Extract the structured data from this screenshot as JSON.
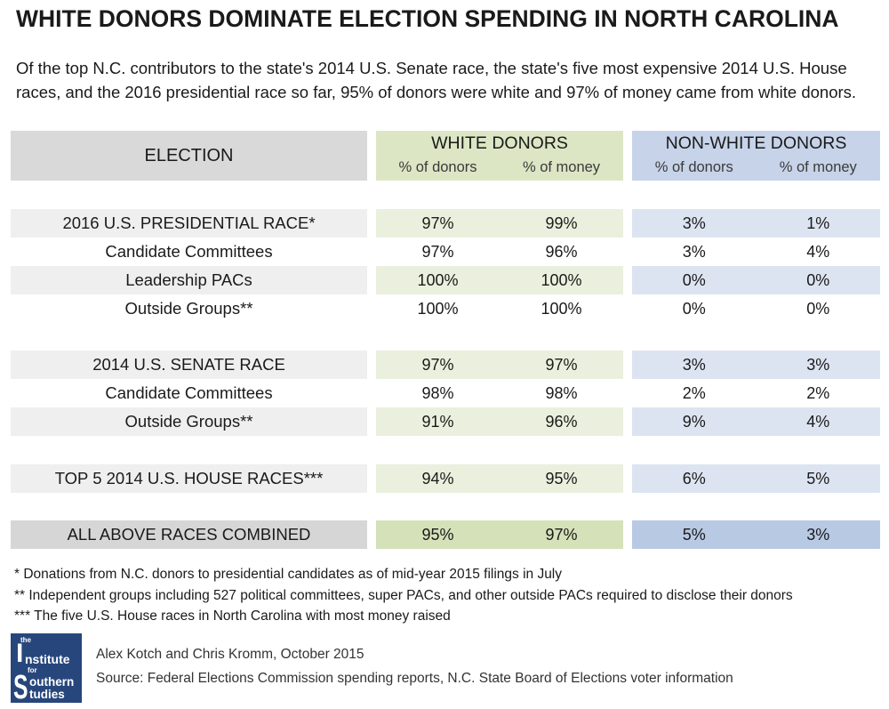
{
  "title": "WHITE DONORS DOMINATE ELECTION SPENDING IN NORTH CAROLINA",
  "subtitle": "Of the top N.C. contributors to the state's 2014 U.S. Senate race, the state's five most expensive 2014 U.S. House races, and the 2016 presidential race so far, 95% of donors were white and 97% of money came from white donors.",
  "colors": {
    "text": "#1a1a1a",
    "header_gray": "#d9d9d9",
    "header_green": "#dce6c4",
    "header_blue": "#c7d3e9",
    "row_gray": "#efefef",
    "row_green": "#eaf0dd",
    "row_blue": "#dde4f1",
    "total_gray": "#d6d6d6",
    "total_green": "#d5e1b8",
    "total_blue": "#b8c9e4",
    "logo_blue": "#27477c"
  },
  "chart_data": {
    "type": "table",
    "columns": {
      "label_header": "ELECTION",
      "groups": [
        {
          "label": "WHITE DONORS",
          "subcolumns": [
            "% of donors",
            "% of money"
          ]
        },
        {
          "label": "NON-WHITE DONORS",
          "subcolumns": [
            "% of donors",
            "% of money"
          ]
        }
      ]
    },
    "unit": "%",
    "sections": [
      {
        "race": {
          "label": "2016 U.S. PRESIDENTIAL RACE*",
          "values": [
            97,
            99,
            3,
            1
          ]
        },
        "breakdown": [
          {
            "label": "Candidate Committees",
            "values": [
              97,
              96,
              3,
              4
            ]
          },
          {
            "label": "Leadership PACs",
            "values": [
              100,
              100,
              0,
              0
            ]
          },
          {
            "label": "Outside Groups**",
            "values": [
              100,
              100,
              0,
              0
            ]
          }
        ]
      },
      {
        "race": {
          "label": "2014 U.S. SENATE RACE",
          "values": [
            97,
            97,
            3,
            3
          ]
        },
        "breakdown": [
          {
            "label": "Candidate Committees",
            "values": [
              98,
              98,
              2,
              2
            ]
          },
          {
            "label": "Outside Groups**",
            "values": [
              91,
              96,
              9,
              4
            ]
          }
        ]
      },
      {
        "race": {
          "label": "TOP 5 2014 U.S. HOUSE RACES***",
          "values": [
            94,
            95,
            6,
            5
          ]
        },
        "breakdown": []
      }
    ],
    "total": {
      "label": "ALL ABOVE RACES COMBINED",
      "values": [
        95,
        97,
        5,
        3
      ]
    }
  },
  "footnotes": [
    "* Donations from N.C. donors to presidential candidates as of mid-year 2015 filings in July",
    "** Independent groups including 527 political committees, super PACs, and other outside PACs required to disclose their donors",
    "*** The five U.S. House races in North Carolina with most money raised"
  ],
  "credits": {
    "authors": "Alex Kotch and Chris Kromm, October 2015",
    "source": "Source: Federal Elections Commission spending reports, N.C. State Board of Elections voter information"
  },
  "logo": {
    "parts": [
      "the",
      "I",
      "nstitute",
      "for",
      "S",
      "outhern",
      "tudies"
    ]
  }
}
